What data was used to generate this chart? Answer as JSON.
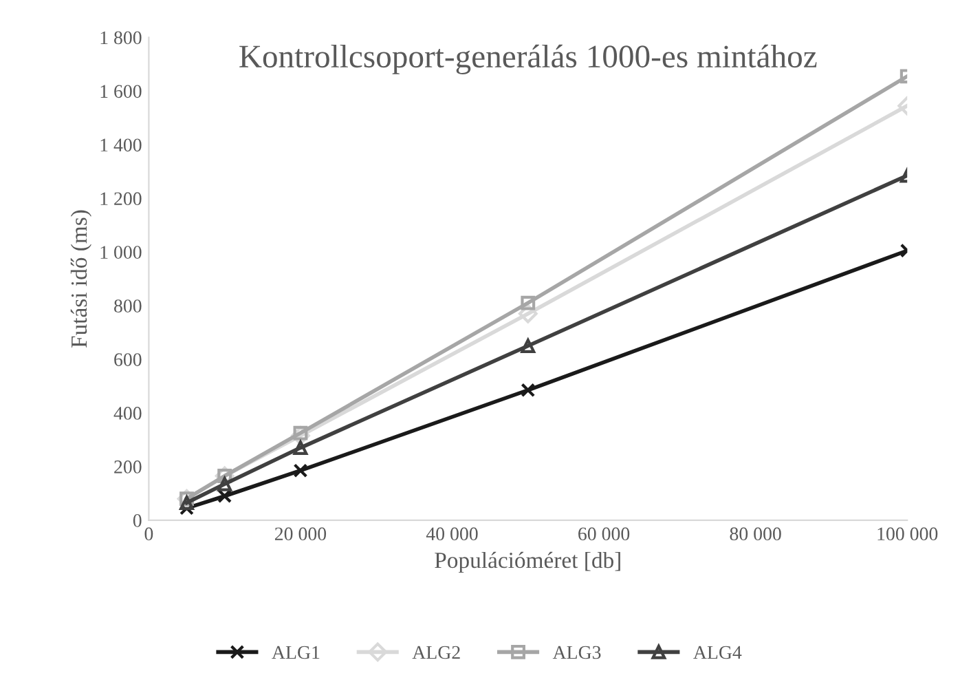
{
  "chart_data": {
    "type": "line",
    "title": "Kontrollcsoport-generálás 1000-es mintához",
    "xlabel": "Populációméret [db]",
    "ylabel": "Futási idő (ms)",
    "x": [
      5000,
      10000,
      20000,
      50000,
      100000
    ],
    "series": [
      {
        "name": "ALG1",
        "color": "#1a1a1a",
        "marker": "cross",
        "values": [
          45,
          90,
          185,
          485,
          1005
        ]
      },
      {
        "name": "ALG2",
        "color": "#d9d9d9",
        "marker": "diamond",
        "values": [
          80,
          165,
          315,
          770,
          1545
        ]
      },
      {
        "name": "ALG3",
        "color": "#a6a6a6",
        "marker": "square",
        "values": [
          80,
          165,
          325,
          810,
          1655
        ]
      },
      {
        "name": "ALG4",
        "color": "#404040",
        "marker": "triangle",
        "values": [
          65,
          135,
          270,
          650,
          1285
        ]
      }
    ],
    "xlim": [
      0,
      100000
    ],
    "xticks": [
      0,
      {
        "value": 20000,
        "label": "20 000"
      },
      {
        "value": 40000,
        "label": "40 000"
      },
      {
        "value": 60000,
        "label": "60 000"
      },
      {
        "value": 80000,
        "label": "80 000"
      },
      {
        "value": 100000,
        "label": "100 000"
      }
    ],
    "ylim": [
      0,
      1800
    ],
    "yticks": [
      0,
      200,
      400,
      600,
      800,
      {
        "value": 1000,
        "label": "1 000"
      },
      {
        "value": 1200,
        "label": "1 200"
      },
      {
        "value": 1400,
        "label": "1 400"
      },
      {
        "value": 1600,
        "label": "1 600"
      },
      {
        "value": 1800,
        "label": "1 800"
      }
    ],
    "legend": "bottom",
    "grid": false,
    "line_style": "solid"
  }
}
